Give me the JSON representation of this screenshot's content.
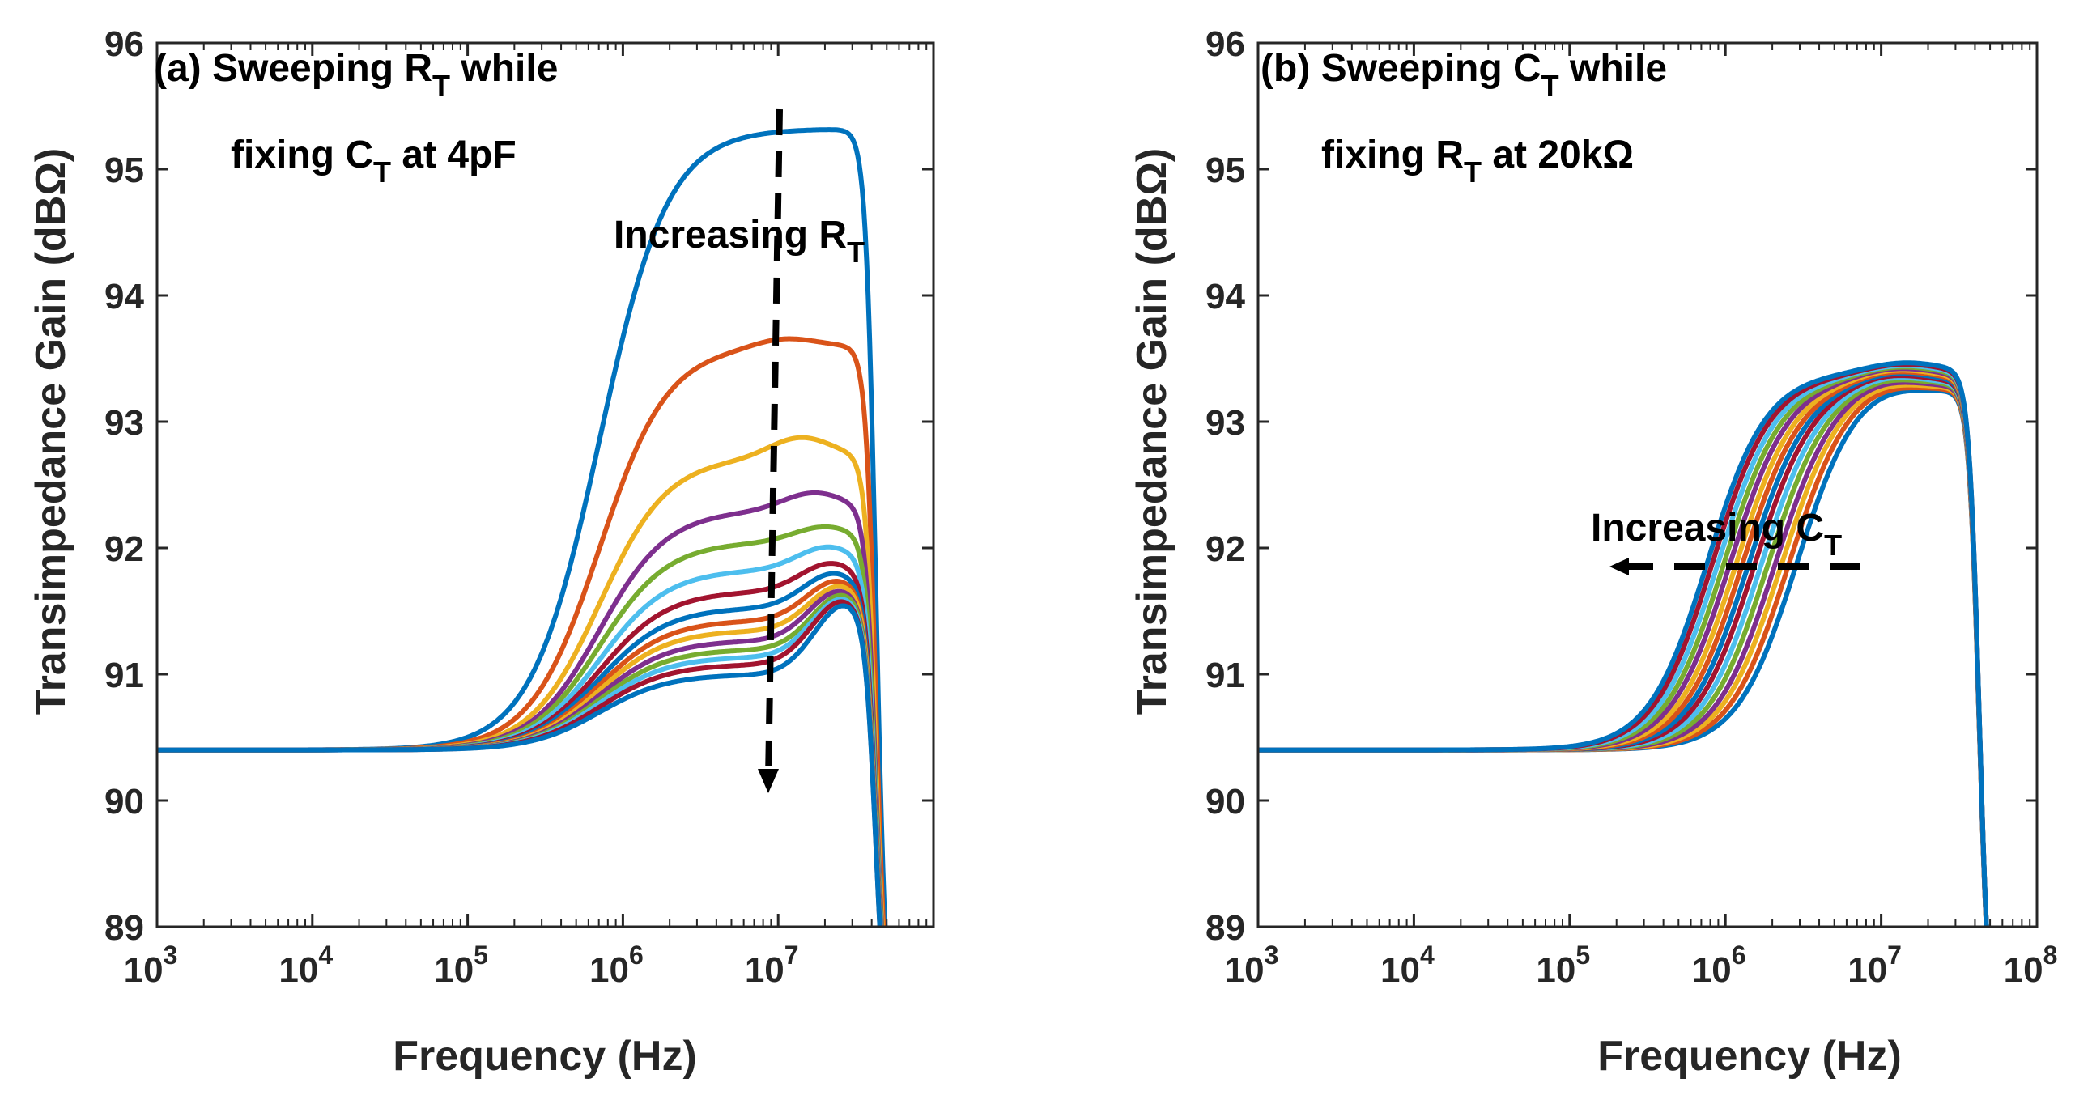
{
  "chart_data": [
    {
      "type": "line",
      "panel": "a",
      "title_line1": "(a) Sweeping R",
      "title_sub1": "T",
      "title_line1_tail": " while",
      "title_line2": "fixing C",
      "title_sub2": "T",
      "title_line2_tail": " at 4pF",
      "annotation": "Increasing R",
      "annotation_sub": "T",
      "arrow_direction": "down",
      "xlabel": "Frequency (Hz)",
      "ylabel": "Transimpedance Gain (dBΩ)",
      "xscale": "log",
      "xlim": [
        1000,
        100000000
      ],
      "ylim": [
        89,
        96
      ],
      "xtick_labels": [
        "3",
        "4",
        "5",
        "6",
        "7"
      ],
      "ytick_labels": [
        "89",
        "90",
        "91",
        "92",
        "93",
        "94",
        "95",
        "96"
      ],
      "series": [
        {
          "color": "#0072BD",
          "peak_freq": 10000000,
          "peak_gain": 95.32,
          "plateau_gain": 95.32
        },
        {
          "color": "#D95319",
          "peak_freq": 11000000,
          "peak_gain": 93.67,
          "plateau_gain": 93.6
        },
        {
          "color": "#EDB120",
          "peak_freq": 14000000,
          "peak_gain": 92.88,
          "plateau_gain": 92.72
        },
        {
          "color": "#7E2F8E",
          "peak_freq": 17000000,
          "peak_gain": 92.44,
          "plateau_gain": 92.3
        },
        {
          "color": "#77AC30",
          "peak_freq": 20000000,
          "peak_gain": 92.17,
          "plateau_gain": 92.05
        },
        {
          "color": "#4DBEEE",
          "peak_freq": 21000000,
          "peak_gain": 92.01,
          "plateau_gain": 91.83
        },
        {
          "color": "#A2142F",
          "peak_freq": 22000000,
          "peak_gain": 91.88,
          "plateau_gain": 91.66
        },
        {
          "color": "#0072BD",
          "peak_freq": 23000000,
          "peak_gain": 91.8,
          "plateau_gain": 91.53
        },
        {
          "color": "#D95319",
          "peak_freq": 24000000,
          "peak_gain": 91.74,
          "plateau_gain": 91.43
        },
        {
          "color": "#EDB120",
          "peak_freq": 25000000,
          "peak_gain": 91.7,
          "plateau_gain": 91.35
        },
        {
          "color": "#7E2F8E",
          "peak_freq": 25000000,
          "peak_gain": 91.66,
          "plateau_gain": 91.27
        },
        {
          "color": "#77AC30",
          "peak_freq": 26000000,
          "peak_gain": 91.63,
          "plateau_gain": 91.2
        },
        {
          "color": "#4DBEEE",
          "peak_freq": 26000000,
          "peak_gain": 91.6,
          "plateau_gain": 91.14
        },
        {
          "color": "#A2142F",
          "peak_freq": 26000000,
          "peak_gain": 91.58,
          "plateau_gain": 91.08
        },
        {
          "color": "#0072BD",
          "peak_freq": 27000000,
          "peak_gain": 91.55,
          "plateau_gain": 91.0
        }
      ]
    },
    {
      "type": "line",
      "panel": "b",
      "title_line1": "(b) Sweeping C",
      "title_sub1": "T",
      "title_line1_tail": " while",
      "title_line2": "fixing R",
      "title_sub2": "T",
      "title_line2_tail": " at 20kΩ",
      "annotation": "Increasing C",
      "annotation_sub": "T",
      "arrow_direction": "left",
      "xlabel": "Frequency (Hz)",
      "ylabel": "Transimpedance Gain (dBΩ)",
      "xscale": "log",
      "xlim": [
        1000,
        100000000
      ],
      "ylim": [
        89,
        96
      ],
      "xtick_labels": [
        "3",
        "4",
        "5",
        "6",
        "7",
        "8"
      ],
      "ytick_labels": [
        "89",
        "90",
        "91",
        "92",
        "93",
        "94",
        "95",
        "96"
      ],
      "series": [
        {
          "color": "#0072BD",
          "f_mid": 2800000,
          "peak_freq": 9000000,
          "peak_gain": 93.3
        },
        {
          "color": "#D95319",
          "f_mid": 2500000,
          "peak_freq": 9200000,
          "peak_gain": 93.31
        },
        {
          "color": "#EDB120",
          "f_mid": 2250000,
          "peak_freq": 9500000,
          "peak_gain": 93.32
        },
        {
          "color": "#7E2F8E",
          "f_mid": 2050000,
          "peak_freq": 9800000,
          "peak_gain": 93.33
        },
        {
          "color": "#77AC30",
          "f_mid": 1850000,
          "peak_freq": 10200000,
          "peak_gain": 93.34
        },
        {
          "color": "#4DBEEE",
          "f_mid": 1680000,
          "peak_freq": 10600000,
          "peak_gain": 93.35
        },
        {
          "color": "#A2142F",
          "f_mid": 1530000,
          "peak_freq": 11000000,
          "peak_gain": 93.36
        },
        {
          "color": "#0072BD",
          "f_mid": 1400000,
          "peak_freq": 11500000,
          "peak_gain": 93.37
        },
        {
          "color": "#D95319",
          "f_mid": 1280000,
          "peak_freq": 12000000,
          "peak_gain": 93.38
        },
        {
          "color": "#EDB120",
          "f_mid": 1170000,
          "peak_freq": 12400000,
          "peak_gain": 93.39
        },
        {
          "color": "#7E2F8E",
          "f_mid": 1070000,
          "peak_freq": 12800000,
          "peak_gain": 93.4
        },
        {
          "color": "#77AC30",
          "f_mid": 980000,
          "peak_freq": 13200000,
          "peak_gain": 93.41
        },
        {
          "color": "#4DBEEE",
          "f_mid": 900000,
          "peak_freq": 13500000,
          "peak_gain": 93.42
        },
        {
          "color": "#A2142F",
          "f_mid": 830000,
          "peak_freq": 13800000,
          "peak_gain": 93.43
        },
        {
          "color": "#0072BD",
          "f_mid": 770000,
          "peak_freq": 14200000,
          "peak_gain": 93.44
        }
      ]
    }
  ]
}
